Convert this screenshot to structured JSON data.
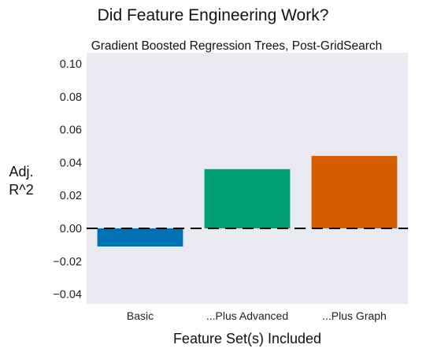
{
  "chart_data": {
    "type": "bar",
    "title": "Did Feature Engineering Work?",
    "subtitle": "Gradient Boosted Regression Trees, Post-GridSearch",
    "xlabel": "Feature Set(s) Included",
    "ylabel_lines": [
      "Adj.",
      "R^2"
    ],
    "categories": [
      "Basic",
      "...Plus Advanced",
      "...Plus Graph"
    ],
    "values": [
      -0.011,
      0.036,
      0.044
    ],
    "colors": [
      "#0072b2",
      "#009e73",
      "#d55e00"
    ],
    "ylim": [
      -0.05,
      0.1
    ],
    "yticks": [
      0.1,
      0.08,
      0.06,
      0.04,
      0.02,
      0.0,
      -0.02,
      -0.04
    ],
    "ytick_labels": [
      "0.10",
      "0.08",
      "0.06",
      "0.04",
      "0.02",
      "0.00",
      "−0.02",
      "−0.04"
    ],
    "reference_line": 0.0,
    "background_color": "#eaeaf2",
    "grid": false
  }
}
